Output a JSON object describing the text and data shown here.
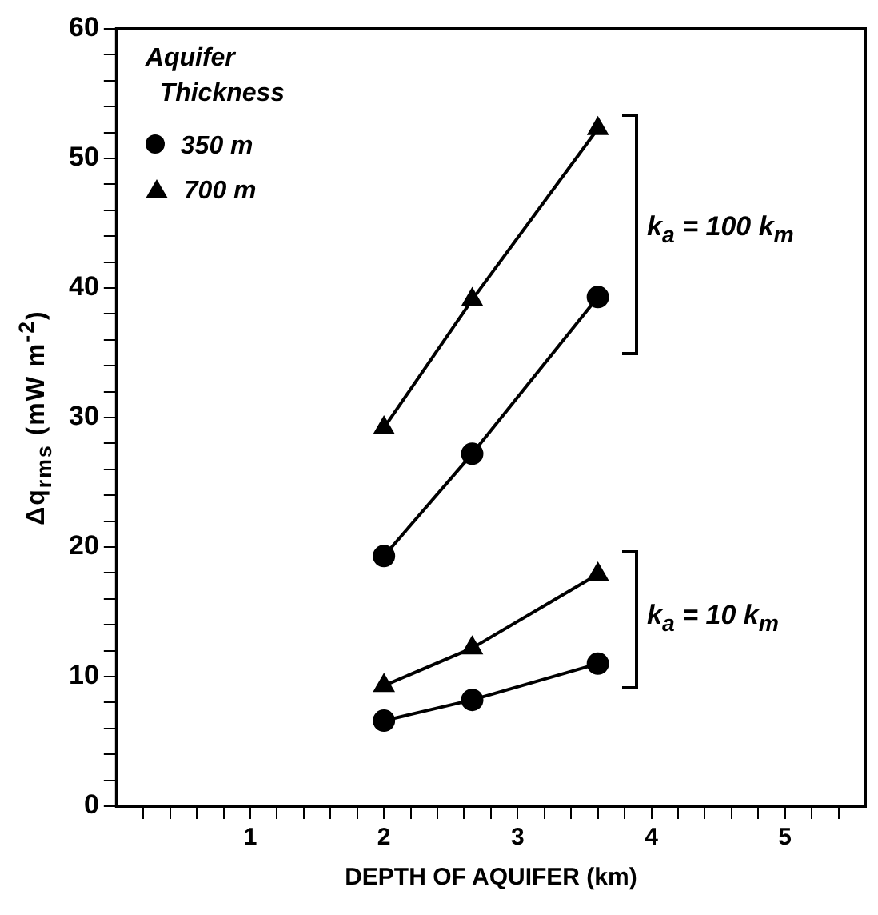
{
  "chart_data": {
    "type": "line",
    "xlabel": "DEPTH OF AQUIFER (km)",
    "ylabel": "Δq$_{rms}$  (mW m$^{-2}$)",
    "legend_title": "Aquifer Thickness",
    "legend": "top left",
    "grid": false,
    "line_style": "solid",
    "xlim": [
      0,
      5.6
    ],
    "ylim": [
      0,
      60
    ],
    "xticks": [
      {
        "value": 0.2,
        "label": null
      },
      {
        "value": 0.4,
        "label": null
      },
      {
        "value": 0.6,
        "label": null
      },
      {
        "value": 0.8,
        "label": null
      },
      1,
      {
        "value": 1.2,
        "label": null
      },
      {
        "value": 1.4,
        "label": null
      },
      {
        "value": 1.6,
        "label": null
      },
      {
        "value": 1.8,
        "label": null
      },
      2,
      {
        "value": 2.2,
        "label": null
      },
      {
        "value": 2.4,
        "label": null
      },
      {
        "value": 2.6,
        "label": null
      },
      {
        "value": 2.8,
        "label": null
      },
      3,
      {
        "value": 3.2,
        "label": null
      },
      {
        "value": 3.4,
        "label": null
      },
      {
        "value": 3.6,
        "label": null
      },
      {
        "value": 3.8,
        "label": null
      },
      4,
      {
        "value": 4.2,
        "label": null
      },
      {
        "value": 4.4,
        "label": null
      },
      {
        "value": 4.6,
        "label": null
      },
      {
        "value": 4.8,
        "label": null
      },
      5,
      {
        "value": 5.2,
        "label": null
      },
      {
        "value": 5.4,
        "label": null
      }
    ],
    "yticks": [
      0,
      {
        "value": 2,
        "label": null
      },
      {
        "value": 4,
        "label": null
      },
      {
        "value": 6,
        "label": null
      },
      {
        "value": 8,
        "label": null
      },
      10,
      {
        "value": 12,
        "label": null
      },
      {
        "value": 14,
        "label": null
      },
      {
        "value": 16,
        "label": null
      },
      {
        "value": 18,
        "label": null
      },
      20,
      {
        "value": 22,
        "label": null
      },
      {
        "value": 24,
        "label": null
      },
      {
        "value": 26,
        "label": null
      },
      {
        "value": 28,
        "label": null
      },
      30,
      {
        "value": 32,
        "label": null
      },
      {
        "value": 34,
        "label": null
      },
      {
        "value": 36,
        "label": null
      },
      {
        "value": 38,
        "label": null
      },
      40,
      {
        "value": 42,
        "label": null
      },
      {
        "value": 44,
        "label": null
      },
      {
        "value": 46,
        "label": null
      },
      {
        "value": 48,
        "label": null
      },
      50,
      {
        "value": 52,
        "label": null
      },
      {
        "value": 54,
        "label": null
      },
      {
        "value": 56,
        "label": null
      },
      {
        "value": 58,
        "label": null
      },
      60
    ],
    "series": [
      {
        "name": "350 m",
        "color": "#000000",
        "marker": "circle",
        "x": [
          2,
          2.66,
          3.6
        ],
        "values": [
          19.3,
          27.2,
          39.3
        ]
      },
      {
        "name": "700 m",
        "color": "#000000",
        "marker": "triangle",
        "x": [
          2,
          2.66,
          3.6
        ],
        "values": [
          29.2,
          39.1,
          52.3
        ]
      },
      {
        "color": "#000000",
        "marker": "circle",
        "x": [
          2,
          2.66,
          3.6
        ],
        "values": [
          6.6,
          8.2,
          11.0
        ]
      },
      {
        "color": "#000000",
        "marker": "triangle",
        "x": [
          2,
          2.66,
          3.6
        ],
        "values": [
          9.3,
          12.2,
          17.9
        ]
      }
    ],
    "annotations": [
      "k$_{a}$ = 100 k$_{m}$",
      "k$_{a}$ = 10 k$_{m}$"
    ]
  }
}
